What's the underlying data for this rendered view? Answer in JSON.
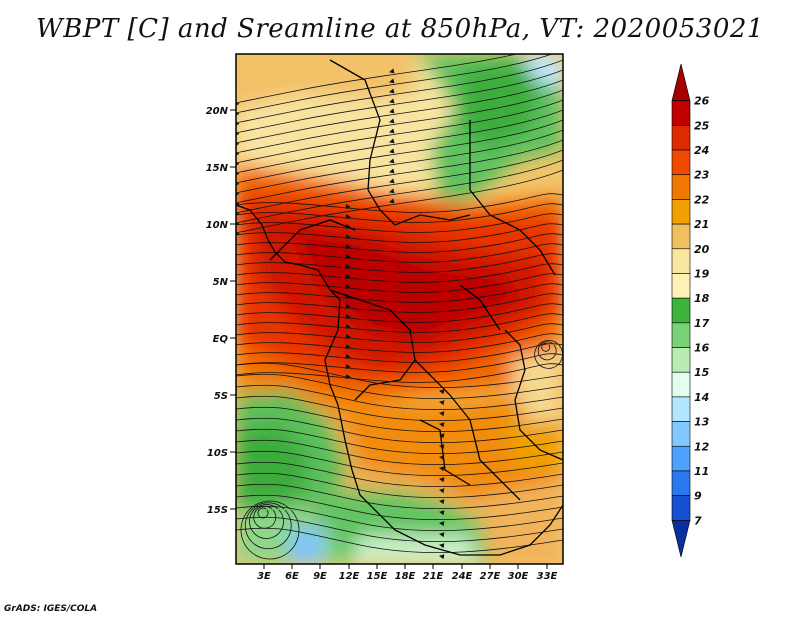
{
  "title": "WBPT [C] and Sreamline at 850hPa, VT: 2020053021",
  "footer": "GrADS: IGES/COLA",
  "map": {
    "lat_labels": [
      "20N",
      "15N",
      "10N",
      "5N",
      "EQ",
      "5S",
      "10S",
      "15S"
    ],
    "lon_labels": [
      "3E",
      "6E",
      "9E",
      "12E",
      "15E",
      "18E",
      "21E",
      "24E",
      "27E",
      "30E",
      "33E"
    ]
  },
  "colorbar": {
    "levels": [
      "26",
      "25",
      "24",
      "23",
      "22",
      "21",
      "20",
      "19",
      "18",
      "17",
      "16",
      "15",
      "14",
      "13",
      "12",
      "11",
      "9",
      "7"
    ],
    "colors": [
      "#a50000",
      "#c00000",
      "#e02a00",
      "#f04a00",
      "#f07800",
      "#f0a000",
      "#f0c060",
      "#f8e6a0",
      "#fff0b8",
      "#3cb43c",
      "#78d278",
      "#b8ecb0",
      "#e0fff0",
      "#b4e6ff",
      "#82c8ff",
      "#50a0ff",
      "#2a78f0",
      "#1450d0",
      "#0a30a0"
    ]
  }
}
